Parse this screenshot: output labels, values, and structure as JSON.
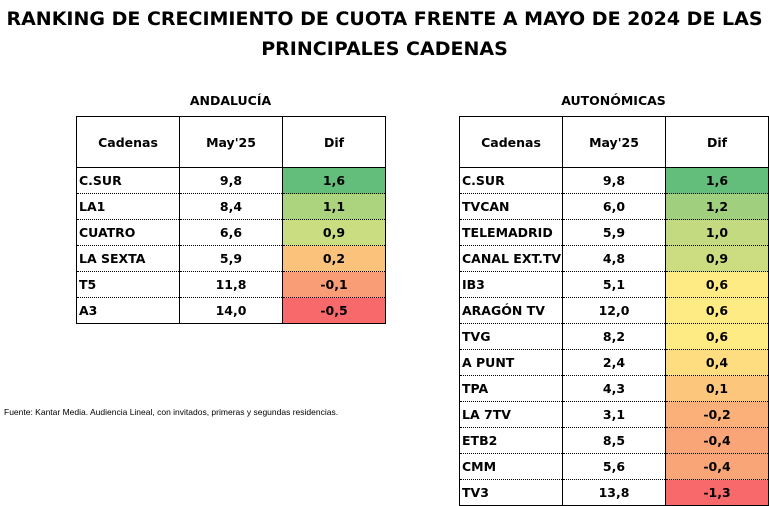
{
  "title_line1": "RANKING DE CRECIMIENTO DE CUOTA FRENTE A MAYO DE 2024 DE LAS",
  "title_line2": "PRINCIPALES CADENAS",
  "footnote": "Fuente: Kantar Media. Audiencia Lineal, con invitados, primeras y segundas residencias.",
  "tables": [
    {
      "label": "ANDALUCÍA",
      "headers": [
        "Cadenas",
        "May'25",
        "Dif"
      ],
      "rows": [
        {
          "name": "C.SUR",
          "may": "9,8",
          "dif": "1,6",
          "color": "#63be7b"
        },
        {
          "name": "LA1",
          "may": "8,4",
          "dif": "1,1",
          "color": "#acd47f"
        },
        {
          "name": "CUATRO",
          "may": "6,6",
          "dif": "0,9",
          "color": "#cbdd81"
        },
        {
          "name": "LA SEXTA",
          "may": "5,9",
          "dif": "0,2",
          "color": "#fbc27c"
        },
        {
          "name": "T5",
          "may": "11,8",
          "dif": "-0,1",
          "color": "#f99d76"
        },
        {
          "name": "A3",
          "may": "14,0",
          "dif": "-0,5",
          "color": "#f8696b"
        }
      ]
    },
    {
      "label": "AUTONÓMICAS",
      "headers": [
        "Cadenas",
        "May'25",
        "Dif"
      ],
      "rows": [
        {
          "name": "C.SUR",
          "may": "9,8",
          "dif": "1,6",
          "color": "#63be7b"
        },
        {
          "name": "TVCAN",
          "may": "6,0",
          "dif": "1,2",
          "color": "#a0d07e"
        },
        {
          "name": "TELEMADRID",
          "may": "5,9",
          "dif": "1,0",
          "color": "#c3da80"
        },
        {
          "name": "CANAL EXT.TV",
          "may": "4,8",
          "dif": "0,9",
          "color": "#cbdc81"
        },
        {
          "name": "IB3",
          "may": "5,1",
          "dif": "0,6",
          "color": "#ffeb84"
        },
        {
          "name": "ARAGÓN TV",
          "may": "12,0",
          "dif": "0,6",
          "color": "#ffeb84"
        },
        {
          "name": "TVG",
          "may": "8,2",
          "dif": "0,6",
          "color": "#ffeb84"
        },
        {
          "name": "A PUNT",
          "may": "2,4",
          "dif": "0,4",
          "color": "#fedd81"
        },
        {
          "name": "TPA",
          "may": "4,3",
          "dif": "0,1",
          "color": "#fcc77d"
        },
        {
          "name": "LA 7TV",
          "may": "3,1",
          "dif": "-0,2",
          "color": "#fbb079"
        },
        {
          "name": "ETB2",
          "may": "8,5",
          "dif": "-0,4",
          "color": "#faa577"
        },
        {
          "name": "CMM",
          "may": "5,6",
          "dif": "-0,4",
          "color": "#faa577"
        },
        {
          "name": "TV3",
          "may": "13,8",
          "dif": "-1,3",
          "color": "#f8696b"
        }
      ]
    }
  ]
}
